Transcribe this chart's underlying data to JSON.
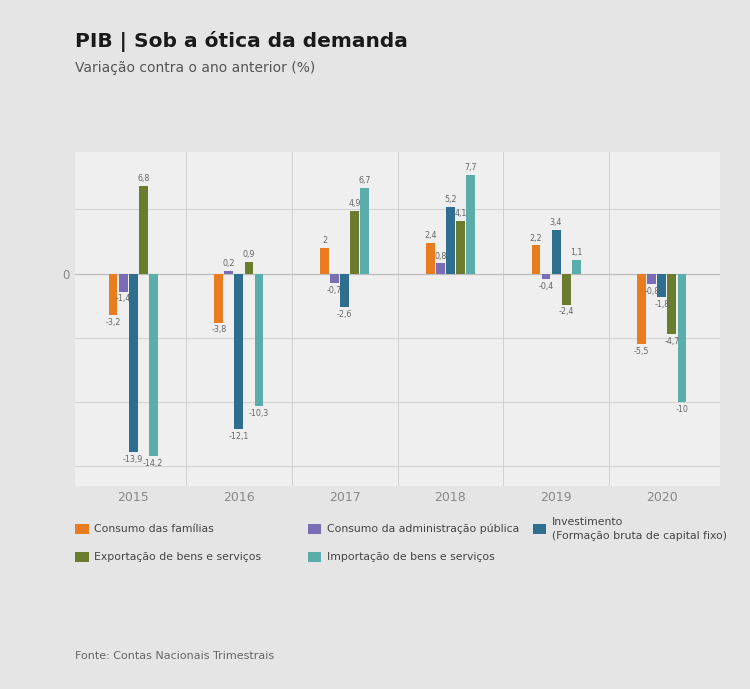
{
  "title": "PIB | Sob a ótica da demanda",
  "subtitle": "Variação contra o ano anterior (%)",
  "years": [
    2015,
    2016,
    2017,
    2018,
    2019,
    2020
  ],
  "series": {
    "consumo_familias": {
      "label": "Consumo das famílias",
      "color": "#e87c1e",
      "values": [
        -3.2,
        -3.8,
        2.0,
        2.4,
        2.2,
        -5.5
      ]
    },
    "consumo_adm": {
      "label": "Consumo da administração pública",
      "color": "#7b6db5",
      "values": [
        -1.4,
        0.2,
        -0.7,
        0.8,
        -0.4,
        -0.8
      ]
    },
    "investimento": {
      "label": "Investimento",
      "label2": "(Formação bruta de capital fixo)",
      "color": "#2e6e8e",
      "values": [
        -13.9,
        -12.1,
        -2.6,
        5.2,
        3.4,
        -1.8
      ]
    },
    "exportacao": {
      "label": "Exportação de bens e serviços",
      "color": "#6b7c2e",
      "values": [
        6.8,
        0.9,
        4.9,
        4.1,
        -2.4,
        -4.7
      ]
    },
    "importacao": {
      "label": "Importação de bens e serviços",
      "color": "#5aadaa",
      "values": [
        -14.2,
        -10.3,
        6.7,
        7.7,
        1.1,
        -10.0
      ]
    }
  },
  "ylim": [
    -16.5,
    9.5
  ],
  "ytick_label": "0",
  "background_color": "#e5e5e5",
  "plot_bg_color": "#efefef",
  "fonte": "Fonte: Contas Nacionais Trimestrais"
}
